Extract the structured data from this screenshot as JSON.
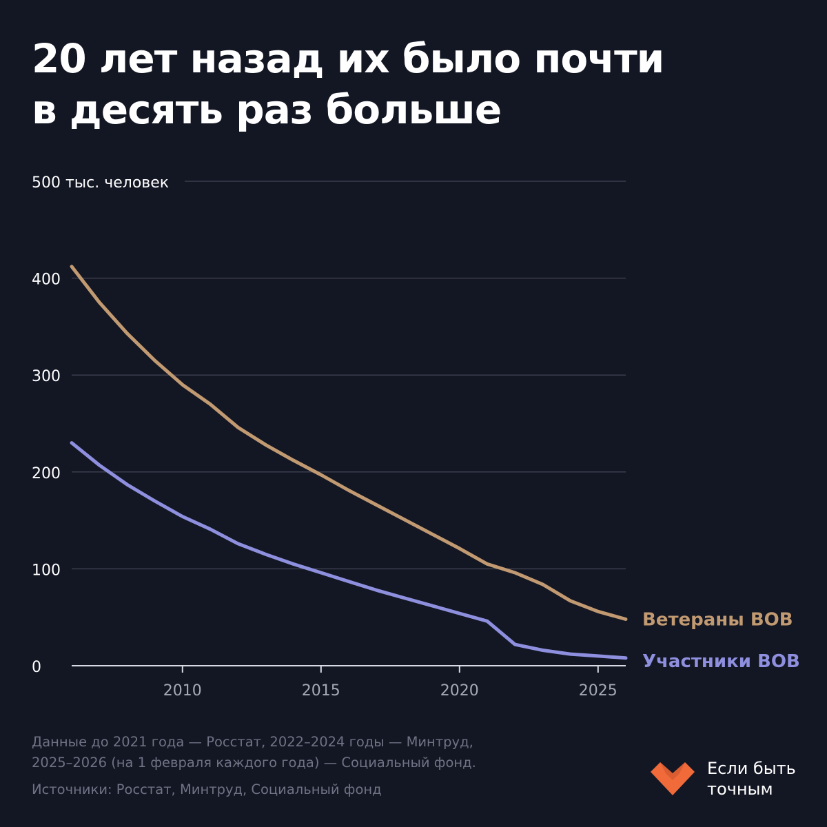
{
  "title_line1": "20 лет назад их было почти",
  "title_line2": "в десять раз больше",
  "chart_data": {
    "type": "line",
    "ylabel": "тыс. человек",
    "ylim": [
      0,
      500
    ],
    "xlim": [
      2006,
      2026
    ],
    "y_ticks": [
      "0",
      "100",
      "200",
      "300",
      "400",
      "500"
    ],
    "y_top_tick_label": "500 тыс. человек",
    "x_ticks": [
      "2010",
      "2015",
      "2020",
      "2025"
    ],
    "grid": true,
    "legend": "direct-labels-right",
    "series": [
      {
        "name": "Ветераны ВОВ",
        "color": "#c19a72",
        "x": [
          2006,
          2007,
          2008,
          2009,
          2010,
          2011,
          2012,
          2013,
          2014,
          2015,
          2016,
          2017,
          2018,
          2019,
          2020,
          2021,
          2022,
          2023,
          2024,
          2025,
          2026
        ],
        "values": [
          412,
          375,
          343,
          315,
          290,
          270,
          246,
          228,
          212,
          197,
          181,
          166,
          151,
          136,
          121,
          105,
          96,
          84,
          67,
          56,
          48
        ]
      },
      {
        "name": "Участники ВОВ",
        "color": "#8e8fde",
        "x": [
          2006,
          2007,
          2008,
          2009,
          2010,
          2011,
          2012,
          2013,
          2014,
          2015,
          2016,
          2017,
          2018,
          2019,
          2020,
          2021,
          2022,
          2023,
          2024,
          2025,
          2026
        ],
        "values": [
          230,
          207,
          187,
          170,
          154,
          141,
          126,
          115,
          105,
          96,
          87,
          78,
          70,
          62,
          54,
          46,
          22,
          16,
          12,
          10,
          8
        ]
      }
    ]
  },
  "notes": {
    "line1": "Данные до 2021 года — Росстат, 2022–2024 годы — Минтруд,",
    "line2": "2025–2026 (на 1 февраля каждого года) — Социальный фонд.",
    "sources": "Источники: Росстат, Минтруд, Социальный фонд"
  },
  "brand": {
    "line1": "Если быть",
    "line2": "точным",
    "logo_color": "#f06a3a"
  }
}
